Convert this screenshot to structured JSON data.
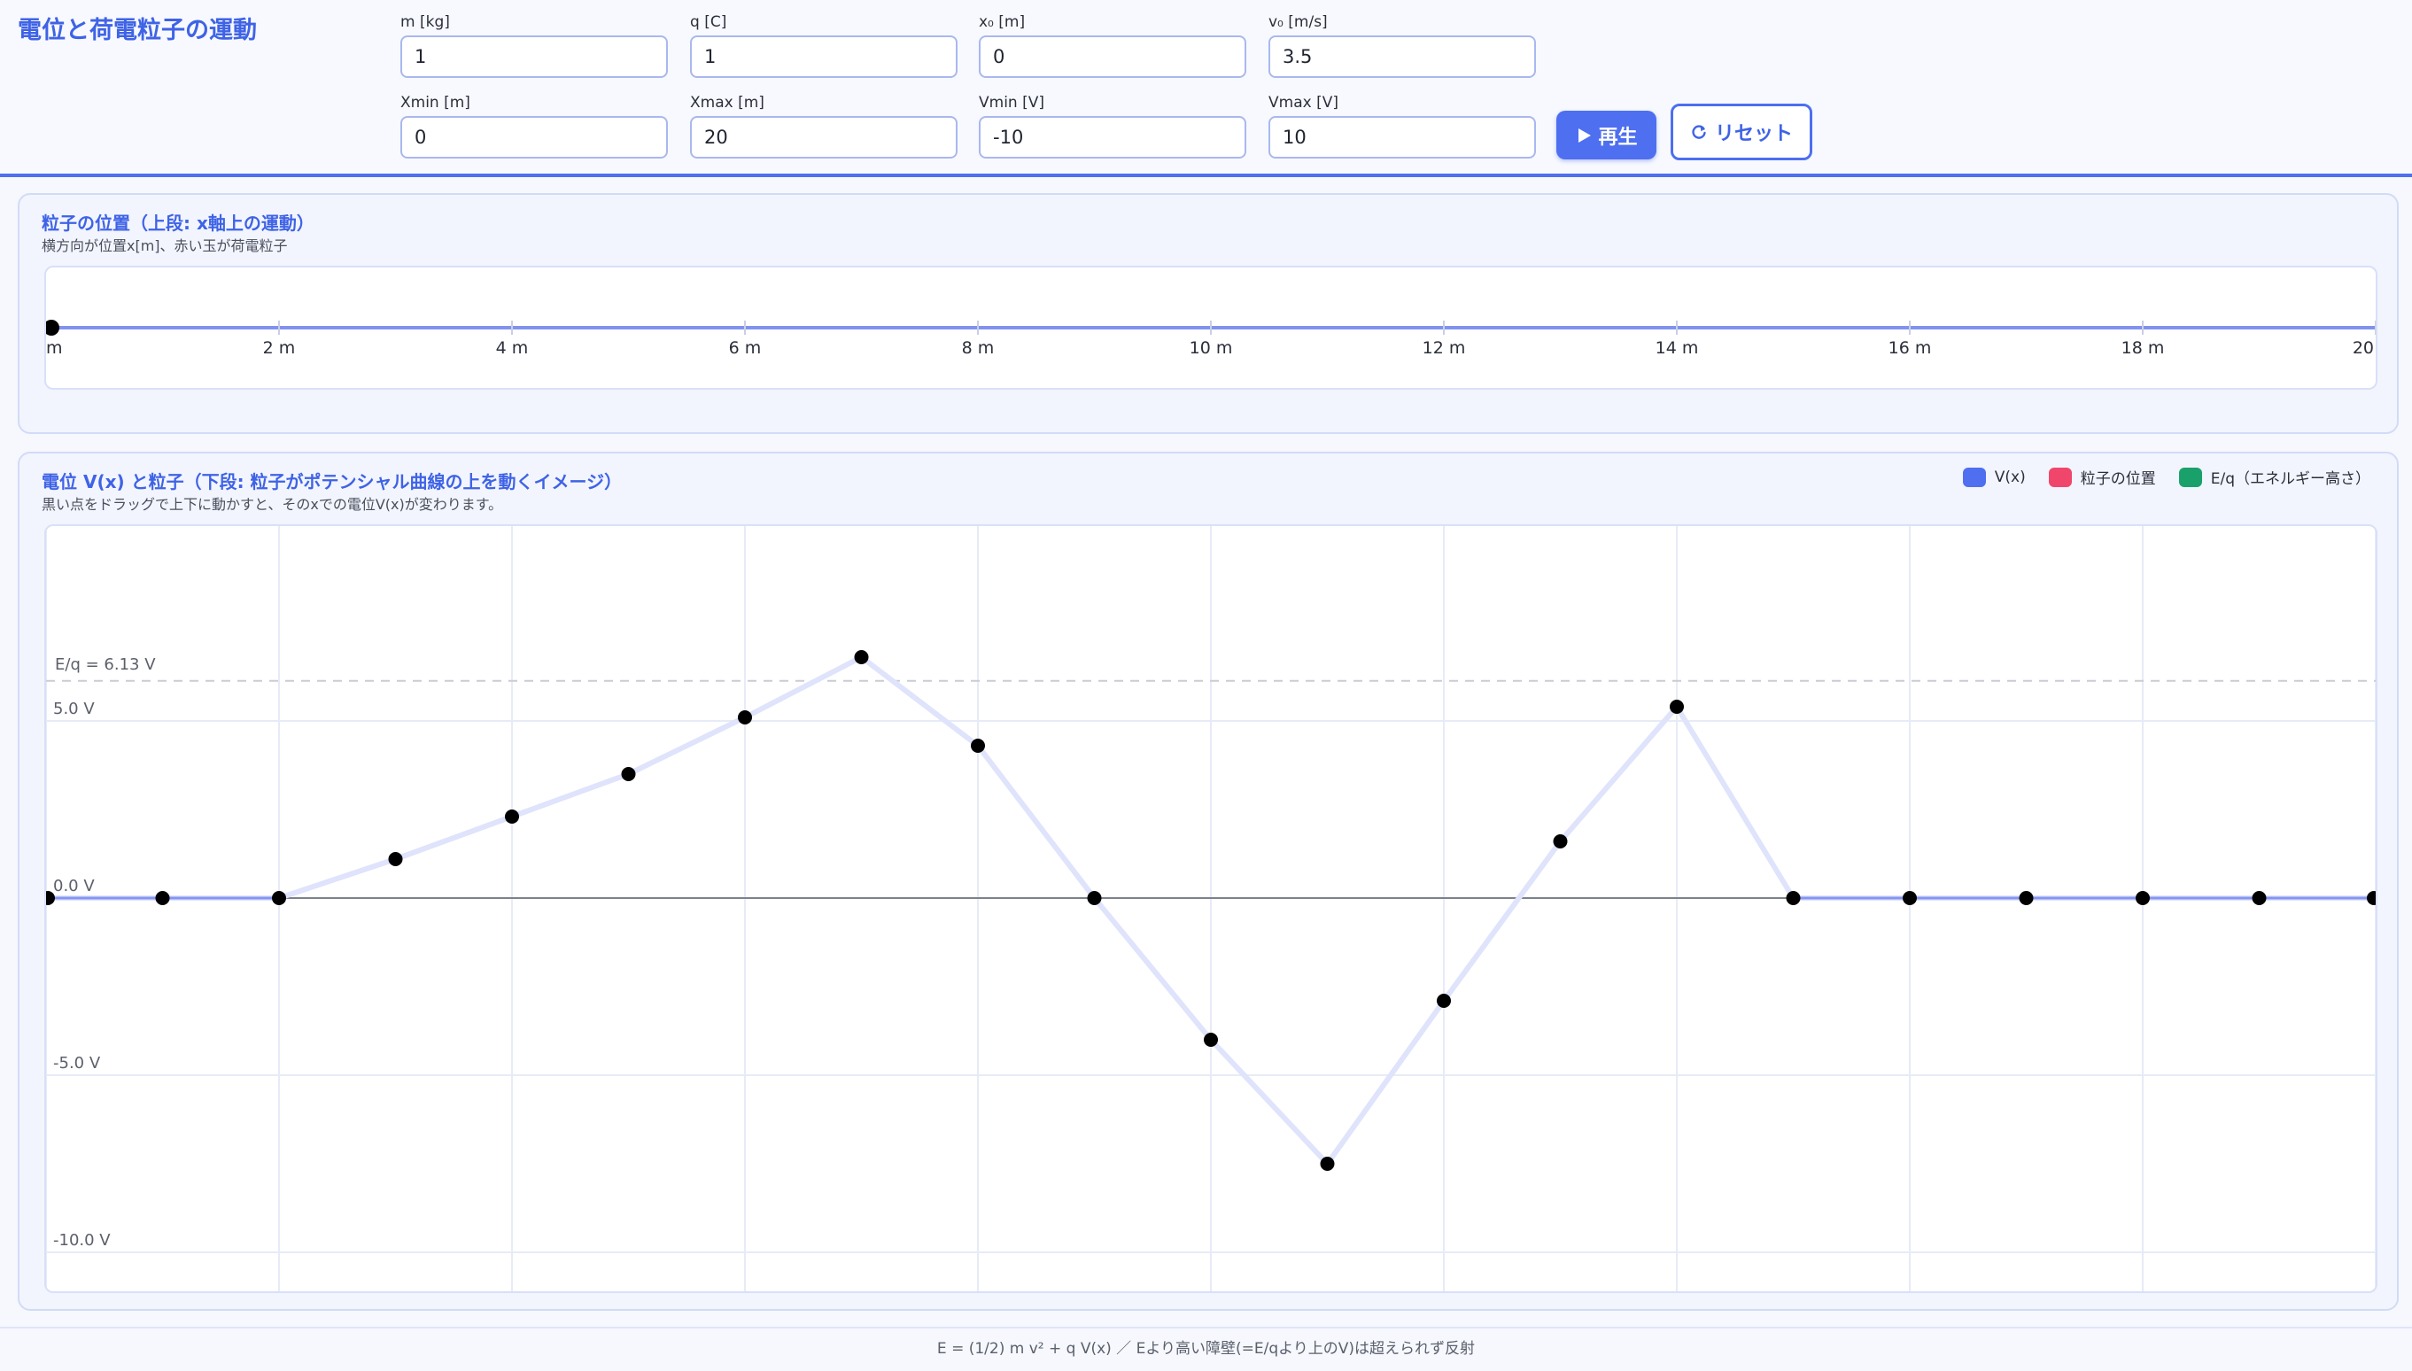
{
  "app": {
    "title": "電位と荷電粒子の運動"
  },
  "controls": {
    "m": {
      "label": "m [kg]",
      "value": "1"
    },
    "q": {
      "label": "q [C]",
      "value": "1"
    },
    "x0": {
      "label": "x₀ [m]",
      "value": "0"
    },
    "v0": {
      "label": "v₀ [m/s]",
      "value": "3.5"
    },
    "xmin": {
      "label": "Xmin [m]",
      "value": "0"
    },
    "xmax": {
      "label": "Xmax [m]",
      "value": "20"
    },
    "vmin": {
      "label": "Vmin [V]",
      "value": "-10"
    },
    "vmax": {
      "label": "Vmax [V]",
      "value": "10"
    },
    "play_label": "再生",
    "reset_label": "リセット"
  },
  "icons": {
    "play": "play-icon",
    "reset": "reset-icon"
  },
  "colors": {
    "accent": "#4d6ff0",
    "potential": "#4f6ef0",
    "particle": "#f0466b",
    "energy": "#1aa16b"
  },
  "position_panel": {
    "title": "粒子の位置（上段: x軸上の運動）",
    "subtitle": "横方向が位置x[m]、赤い玉が荷電粒子",
    "tick_labels": [
      "m",
      "2 m",
      "4 m",
      "6 m",
      "8 m",
      "10 m",
      "12 m",
      "14 m",
      "16 m",
      "18 m",
      "20"
    ],
    "particle_x": 0
  },
  "potential_panel": {
    "title": "電位 V(x) と粒子（下段: 粒子がポテンシャル曲線の上を動くイメージ）",
    "subtitle": "黒い点をドラッグで上下に動かすと、そのxでの電位V(x)が変わります。",
    "legend": [
      {
        "label": "V(x)",
        "color": "#4f6ef0"
      },
      {
        "label": "粒子の位置",
        "color": "#f0466b"
      },
      {
        "label": "E/q（エネルギー高さ）",
        "color": "#1aa16b"
      }
    ]
  },
  "chart_data": {
    "type": "line",
    "x": [
      0,
      1,
      2,
      3,
      4,
      5,
      6,
      7,
      8,
      9,
      10,
      11,
      12,
      13,
      14,
      15,
      16,
      17,
      18,
      19,
      20
    ],
    "series": [
      {
        "name": "V(x)",
        "values": [
          0,
          0,
          0,
          1.1,
          2.3,
          3.5,
          5.1,
          6.8,
          4.3,
          0,
          -4.0,
          -7.5,
          -2.9,
          1.6,
          5.4,
          0,
          0,
          0,
          0,
          0,
          0
        ]
      }
    ],
    "energy_level": 6.13,
    "energy_label": "E/q = 6.13 V",
    "y_tick_labels": [
      "5.0 V",
      "0.0 V",
      "-5.0 V",
      "-10.0 V"
    ],
    "y_ticks": [
      5,
      0,
      -5,
      -10
    ],
    "xlim": [
      0,
      20
    ],
    "ylim": [
      -10,
      10
    ],
    "grid": true
  },
  "footer": {
    "text": "E = (1/2) m v² + q V(x) ／ Eより高い障壁(=E/qより上のV)は超えられず反射"
  }
}
